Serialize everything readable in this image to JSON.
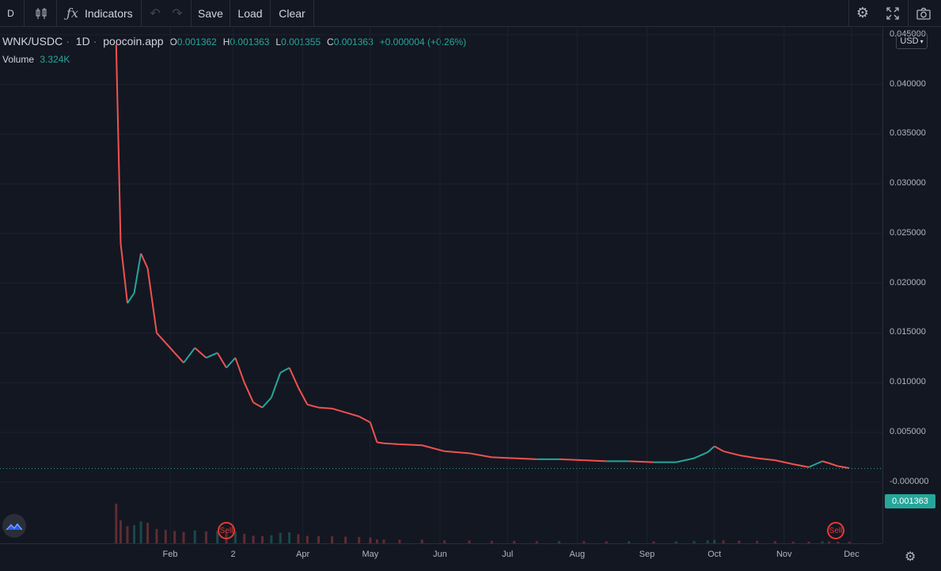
{
  "toolbar": {
    "symbol_btn": "D",
    "indicators_label": "Indicators",
    "save_label": "Save",
    "load_label": "Load",
    "clear_label": "Clear",
    "icons": [
      "candles-icon",
      "function-icon",
      "undo-icon",
      "redo-icon",
      "settings-icon",
      "fullscreen-icon",
      "camera-icon"
    ]
  },
  "legend": {
    "symbol": "WNK/USDC",
    "interval": "1D",
    "source": "poocoin.app",
    "o_label": "O",
    "o_value": "0.001362",
    "h_label": "H",
    "h_value": "0.001363",
    "l_label": "L",
    "l_value": "0.001355",
    "c_label": "C",
    "c_value": "0.001363",
    "change": "+0.000004 (+0.26%)",
    "volume_label": "Volume",
    "volume_value": "3.324K"
  },
  "currency_selector": "USD",
  "current_price_label": "0.001363",
  "sell_marker_label": "Sell",
  "colors": {
    "up": "#26a69a",
    "down": "#ef5350",
    "background": "#131722",
    "grid": "#1e222d"
  },
  "chart_data": {
    "type": "line",
    "series": [
      {
        "x": [
          "2021-01-08",
          "2021-01-10",
          "2021-01-13",
          "2021-01-16",
          "2021-01-19",
          "2021-01-22",
          "2021-01-26",
          "2021-01-30",
          "2021-02-03",
          "2021-02-07",
          "2021-02-12",
          "2021-02-17",
          "2021-02-22",
          "2021-02-26",
          "2021-03-02",
          "2021-03-06",
          "2021-03-10",
          "2021-03-14",
          "2021-03-18",
          "2021-03-22",
          "2021-03-26",
          "2021-03-30",
          "2021-04-03",
          "2021-04-08",
          "2021-04-14",
          "2021-04-20",
          "2021-04-26",
          "2021-05-01",
          "2021-05-04",
          "2021-05-07",
          "2021-05-14",
          "2021-05-24",
          "2021-06-03",
          "2021-06-14",
          "2021-06-24",
          "2021-07-04",
          "2021-07-14",
          "2021-07-24",
          "2021-08-04",
          "2021-08-14",
          "2021-08-24",
          "2021-09-04",
          "2021-09-14",
          "2021-09-22",
          "2021-09-28",
          "2021-10-01",
          "2021-10-05",
          "2021-10-12",
          "2021-10-20",
          "2021-10-28",
          "2021-11-05",
          "2021-11-12",
          "2021-11-18",
          "2021-11-21",
          "2021-11-25",
          "2021-11-30"
        ],
        "values": [
          0.044,
          0.024,
          0.018,
          0.019,
          0.023,
          0.0215,
          0.015,
          0.014,
          0.013,
          0.012,
          0.0135,
          0.0125,
          0.013,
          0.0115,
          0.0125,
          0.01,
          0.008,
          0.0075,
          0.0085,
          0.011,
          0.0115,
          0.0095,
          0.0078,
          0.0075,
          0.0074,
          0.007,
          0.0066,
          0.006,
          0.004,
          0.0039,
          0.0038,
          0.0037,
          0.0031,
          0.0029,
          0.0025,
          0.0024,
          0.0023,
          0.0023,
          0.0022,
          0.0021,
          0.0021,
          0.002,
          0.002,
          0.0024,
          0.003,
          0.0036,
          0.0031,
          0.0027,
          0.0024,
          0.0022,
          0.0018,
          0.0015,
          0.0021,
          0.0019,
          0.0016,
          0.0014
        ]
      }
    ],
    "ylim": [
      -0.0005,
      0.0465
    ],
    "y_ticks": [
      "0.045000",
      "0.040000",
      "0.035000",
      "0.030000",
      "0.025000",
      "0.020000",
      "0.015000",
      "0.010000",
      "0.005000",
      "-0.000000"
    ],
    "y_tick_values": [
      0.045,
      0.04,
      0.035,
      0.03,
      0.025,
      0.02,
      0.015,
      0.01,
      0.005,
      0.0
    ],
    "x_ticks": [
      "Feb",
      "2",
      "Apr",
      "May",
      "Jun",
      "Jul",
      "Aug",
      "Sep",
      "Oct",
      "Nov",
      "Dec"
    ],
    "x_tick_dates": [
      "2021-02-01",
      "2021-03-01",
      "2021-04-01",
      "2021-05-01",
      "2021-06-01",
      "2021-07-01",
      "2021-08-01",
      "2021-09-01",
      "2021-10-01",
      "2021-11-01",
      "2021-12-01"
    ],
    "current_price": 0.001363,
    "sell_signal_dates": [
      "2021-02-25",
      "2021-11-24"
    ],
    "grid": true
  }
}
